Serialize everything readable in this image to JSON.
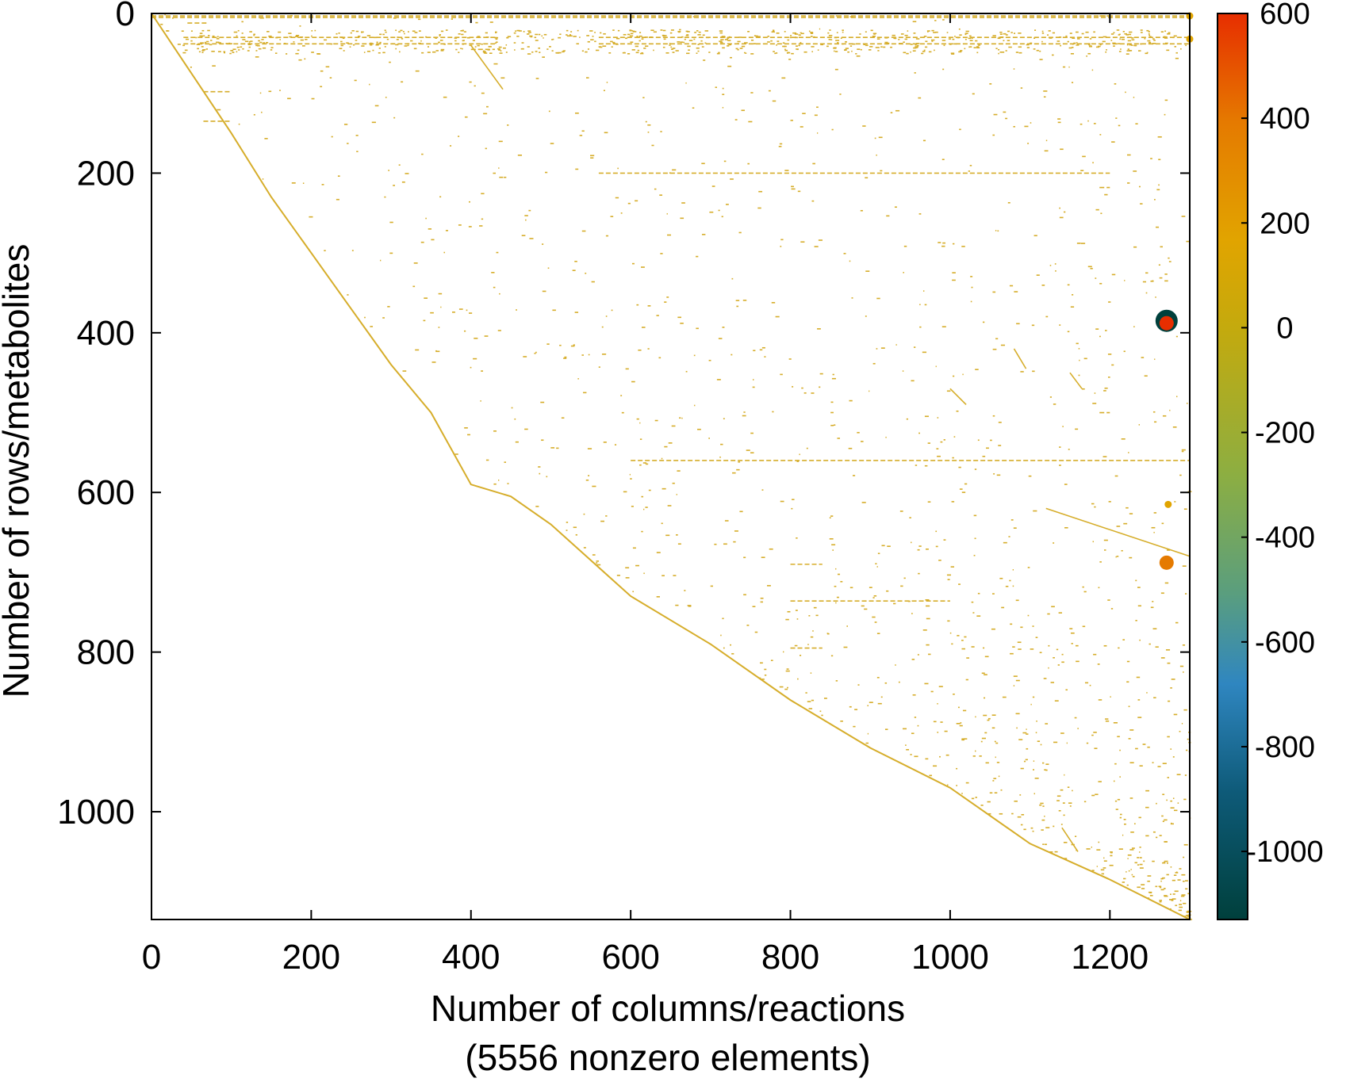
{
  "chart_data": {
    "type": "scatter",
    "subtype": "sparsity-pattern",
    "title": "",
    "xlabel": "Number of columns/reactions",
    "xlabel_note": "(5556 nonzero elements)",
    "ylabel": "Number of rows/metabolites",
    "xlim": [
      0,
      1300
    ],
    "ylim": [
      0,
      1135
    ],
    "y_inverted": true,
    "x_ticks": [
      "0",
      "200",
      "400",
      "600",
      "800",
      "1000",
      "1200"
    ],
    "y_ticks": [
      "0",
      "200",
      "400",
      "600",
      "800",
      "1000"
    ],
    "grid": false,
    "colorbar": {
      "range": [
        -1130,
        600
      ],
      "ticks": [
        "600",
        "400",
        "200",
        "0",
        "-200",
        "-400",
        "-600",
        "-800",
        "-1000"
      ],
      "colors": [
        "#00403c",
        "#0e5a78",
        "#2f86c0",
        "#5a9e7e",
        "#8cae42",
        "#c3aa0e",
        "#e1a400",
        "#e57a00",
        "#e72e00"
      ]
    },
    "diagonal_path": [
      [
        0,
        0
      ],
      [
        40,
        60
      ],
      [
        100,
        150
      ],
      [
        150,
        230
      ],
      [
        200,
        300
      ],
      [
        250,
        370
      ],
      [
        300,
        440
      ],
      [
        350,
        500
      ],
      [
        400,
        590
      ],
      [
        450,
        605
      ],
      [
        500,
        640
      ],
      [
        600,
        730
      ],
      [
        700,
        790
      ],
      [
        800,
        860
      ],
      [
        900,
        920
      ],
      [
        1000,
        970
      ],
      [
        1100,
        1040
      ],
      [
        1200,
        1085
      ],
      [
        1300,
        1135
      ]
    ],
    "diagonal_color": "#d6ad2a",
    "sparse_color": "#d6ad2a",
    "highlight_points": [
      {
        "x": 1271,
        "y": 385,
        "value": -1130,
        "size": "large"
      },
      {
        "x": 1271,
        "y": 388,
        "value": 600,
        "size": "medium"
      },
      {
        "x": 1271,
        "y": 688,
        "value": 400,
        "size": "medium"
      },
      {
        "x": 1273,
        "y": 615,
        "value": 100,
        "size": "small"
      },
      {
        "x": 1300,
        "y": 32,
        "value": 100,
        "size": "small"
      },
      {
        "x": 1300,
        "y": 3,
        "value": 100,
        "size": "small"
      }
    ],
    "segments": [
      {
        "x1": 0,
        "x2": 1300,
        "y": 3
      },
      {
        "x1": 0,
        "x2": 1300,
        "y": 5
      },
      {
        "x1": 45,
        "x2": 70,
        "y": 12
      },
      {
        "x1": 40,
        "x2": 430,
        "y": 30
      },
      {
        "x1": 40,
        "x2": 430,
        "y": 38
      },
      {
        "x1": 560,
        "x2": 1300,
        "y": 30
      },
      {
        "x1": 560,
        "x2": 1300,
        "y": 38
      },
      {
        "x1": 400,
        "x2": 430,
        "y": 45
      },
      {
        "x1": 65,
        "x2": 100,
        "y": 98
      },
      {
        "x1": 65,
        "x2": 100,
        "y": 135
      },
      {
        "x1": 560,
        "x2": 1200,
        "y": 200
      },
      {
        "x1": 1187,
        "x2": 1200,
        "y": 218
      },
      {
        "x1": 1187,
        "x2": 1200,
        "y": 500
      },
      {
        "x1": 1187,
        "x2": 1200,
        "y": 3
      },
      {
        "x1": 800,
        "x2": 840,
        "y": 690
      },
      {
        "x1": 800,
        "x2": 1000,
        "y": 736
      },
      {
        "x1": 800,
        "x2": 840,
        "y": 795
      },
      {
        "x1": 600,
        "x2": 1300,
        "y": 560
      }
    ],
    "slanted_segments": [
      {
        "x1": 400,
        "x2": 440,
        "y1": 40,
        "y2": 95
      },
      {
        "x1": 1080,
        "x2": 1095,
        "y1": 420,
        "y2": 445
      },
      {
        "x1": 1150,
        "x2": 1165,
        "y1": 450,
        "y2": 470
      },
      {
        "x1": 1000,
        "x2": 1020,
        "y1": 470,
        "y2": 490
      },
      {
        "x1": 1120,
        "x2": 1300,
        "y1": 620,
        "y2": 680
      },
      {
        "x1": 1140,
        "x2": 1160,
        "y1": 1020,
        "y2": 1050
      }
    ]
  }
}
